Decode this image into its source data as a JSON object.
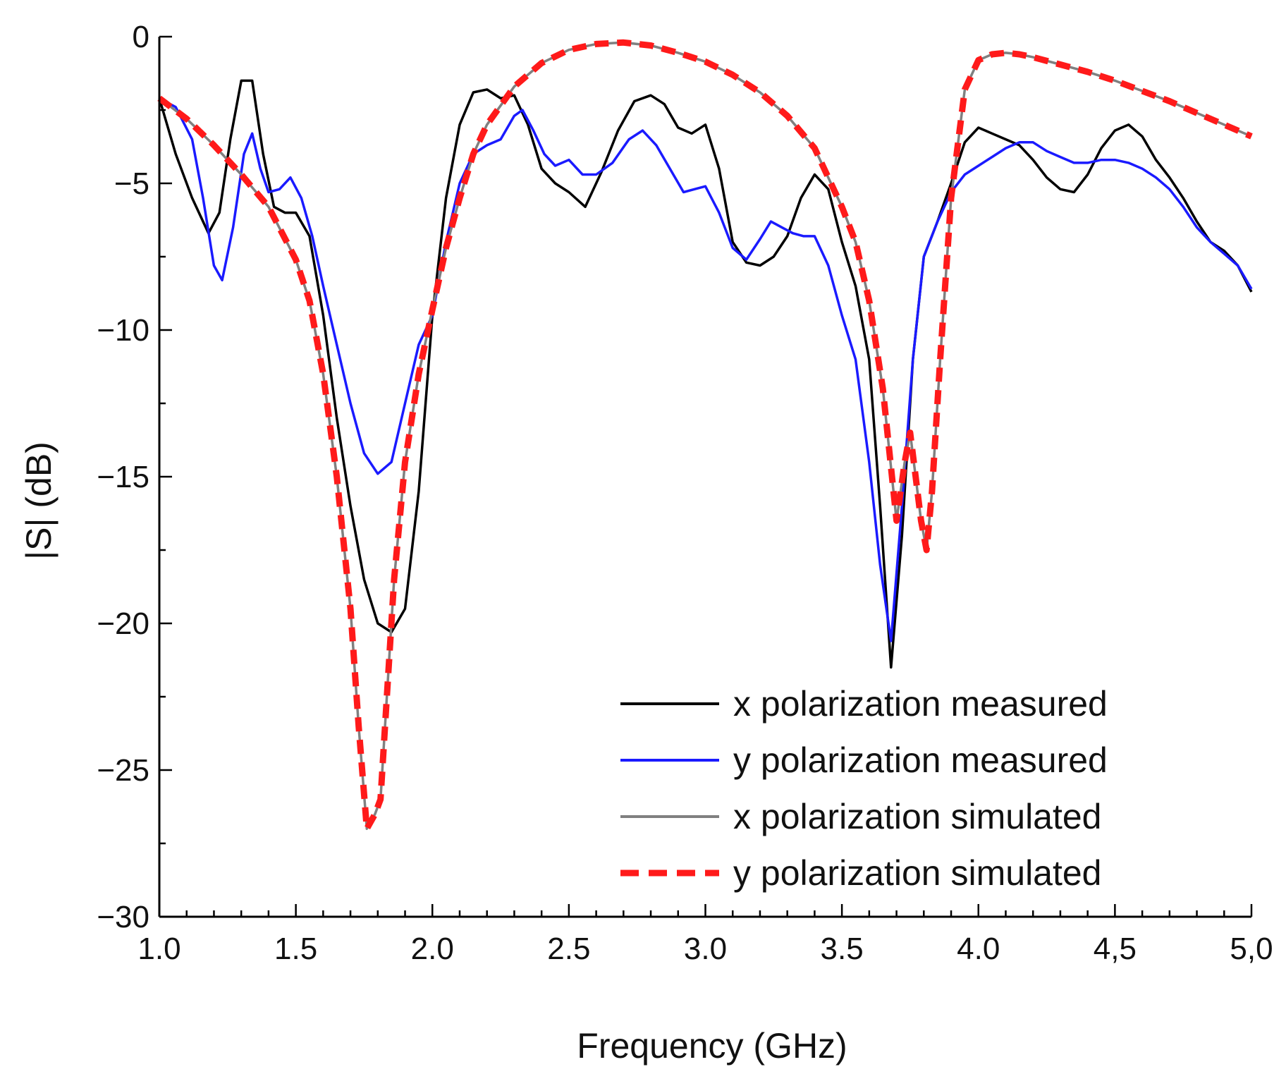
{
  "chart_data": {
    "type": "line",
    "title": "",
    "xlabel": "Frequency (GHz)",
    "ylabel": "|S| (dB)",
    "xlim": [
      1.0,
      5.0
    ],
    "ylim": [
      -30,
      0
    ],
    "x_ticks": [
      1.0,
      1.5,
      2.0,
      2.5,
      3.0,
      3.5,
      4.0,
      4.5,
      5.0
    ],
    "x_tick_labels": [
      "1.0",
      "1.5",
      "2.0",
      "2.5",
      "3.0",
      "3.5",
      "4.0",
      "4,5",
      "5,0"
    ],
    "y_ticks": [
      0,
      -5,
      -10,
      -15,
      -20,
      -25,
      -30
    ],
    "y_tick_labels": [
      "0",
      "−5",
      "−10",
      "−15",
      "−20",
      "−25",
      "−30"
    ],
    "grid": false,
    "legend_position": "bottom-right",
    "series": [
      {
        "name": "x polarization measured",
        "color": "#000000",
        "style": "solid",
        "x": [
          1.0,
          1.06,
          1.12,
          1.18,
          1.22,
          1.26,
          1.3,
          1.34,
          1.38,
          1.42,
          1.46,
          1.5,
          1.55,
          1.6,
          1.65,
          1.7,
          1.75,
          1.8,
          1.85,
          1.9,
          1.95,
          2.0,
          2.05,
          2.1,
          2.15,
          2.2,
          2.25,
          2.3,
          2.35,
          2.4,
          2.45,
          2.5,
          2.56,
          2.62,
          2.68,
          2.74,
          2.8,
          2.85,
          2.9,
          2.95,
          3.0,
          3.05,
          3.1,
          3.15,
          3.2,
          3.25,
          3.3,
          3.35,
          3.4,
          3.45,
          3.5,
          3.55,
          3.6,
          3.64,
          3.68,
          3.72,
          3.76,
          3.8,
          3.85,
          3.9,
          3.95,
          4.0,
          4.05,
          4.1,
          4.15,
          4.2,
          4.25,
          4.3,
          4.35,
          4.4,
          4.45,
          4.5,
          4.55,
          4.6,
          4.65,
          4.7,
          4.75,
          4.8,
          4.85,
          4.9,
          4.95,
          5.0
        ],
        "values": [
          -2.1,
          -4.0,
          -5.5,
          -6.7,
          -6.0,
          -3.5,
          -1.5,
          -1.5,
          -4.0,
          -5.8,
          -6.0,
          -6.0,
          -6.8,
          -9.5,
          -13.0,
          -16.0,
          -18.5,
          -20.0,
          -20.3,
          -19.5,
          -15.5,
          -9.5,
          -5.5,
          -3.0,
          -1.9,
          -1.8,
          -2.1,
          -2.0,
          -3.0,
          -4.5,
          -5.0,
          -5.3,
          -5.8,
          -4.6,
          -3.2,
          -2.2,
          -2.0,
          -2.3,
          -3.1,
          -3.3,
          -3.0,
          -4.5,
          -7.0,
          -7.7,
          -7.8,
          -7.5,
          -6.8,
          -5.5,
          -4.7,
          -5.2,
          -7.0,
          -8.5,
          -11.0,
          -16.0,
          -21.5,
          -17.0,
          -11.0,
          -7.5,
          -6.3,
          -5.0,
          -3.6,
          -3.1,
          -3.3,
          -3.5,
          -3.7,
          -4.2,
          -4.8,
          -5.2,
          -5.3,
          -4.7,
          -3.8,
          -3.2,
          -3.0,
          -3.4,
          -4.2,
          -4.8,
          -5.5,
          -6.3,
          -7.0,
          -7.3,
          -7.8,
          -8.7
        ]
      },
      {
        "name": "y polarization measured",
        "color": "#1a1aff",
        "style": "solid",
        "x": [
          1.0,
          1.06,
          1.12,
          1.16,
          1.2,
          1.23,
          1.27,
          1.31,
          1.34,
          1.37,
          1.4,
          1.44,
          1.48,
          1.52,
          1.56,
          1.6,
          1.65,
          1.7,
          1.75,
          1.8,
          1.85,
          1.9,
          1.95,
          2.0,
          2.05,
          2.1,
          2.15,
          2.2,
          2.25,
          2.3,
          2.33,
          2.37,
          2.41,
          2.45,
          2.5,
          2.55,
          2.6,
          2.66,
          2.72,
          2.77,
          2.82,
          2.87,
          2.92,
          2.96,
          3.0,
          3.05,
          3.1,
          3.15,
          3.2,
          3.24,
          3.28,
          3.32,
          3.36,
          3.4,
          3.45,
          3.5,
          3.55,
          3.6,
          3.64,
          3.68,
          3.72,
          3.76,
          3.8,
          3.85,
          3.9,
          3.95,
          4.0,
          4.05,
          4.1,
          4.15,
          4.2,
          4.25,
          4.3,
          4.35,
          4.4,
          4.45,
          4.5,
          4.55,
          4.6,
          4.65,
          4.7,
          4.75,
          4.8,
          4.85,
          4.9,
          4.95,
          5.0
        ],
        "values": [
          -2.1,
          -2.4,
          -3.5,
          -5.5,
          -7.8,
          -8.3,
          -6.5,
          -4.0,
          -3.3,
          -4.5,
          -5.3,
          -5.2,
          -4.8,
          -5.5,
          -6.8,
          -8.5,
          -10.5,
          -12.5,
          -14.2,
          -14.9,
          -14.5,
          -12.5,
          -10.5,
          -9.5,
          -7.0,
          -5.0,
          -4.0,
          -3.7,
          -3.5,
          -2.7,
          -2.5,
          -3.2,
          -4.0,
          -4.4,
          -4.2,
          -4.7,
          -4.7,
          -4.3,
          -3.5,
          -3.2,
          -3.7,
          -4.5,
          -5.3,
          -5.2,
          -5.1,
          -6.0,
          -7.2,
          -7.6,
          -6.9,
          -6.3,
          -6.5,
          -6.7,
          -6.8,
          -6.8,
          -7.8,
          -9.5,
          -11.0,
          -14.5,
          -18.0,
          -20.6,
          -16.0,
          -11.0,
          -7.5,
          -6.3,
          -5.3,
          -4.7,
          -4.4,
          -4.1,
          -3.8,
          -3.6,
          -3.6,
          -3.9,
          -4.1,
          -4.3,
          -4.3,
          -4.2,
          -4.2,
          -4.3,
          -4.5,
          -4.8,
          -5.2,
          -5.8,
          -6.5,
          -7.0,
          -7.4,
          -7.8,
          -8.6
        ]
      },
      {
        "name": "x polarization simulated",
        "color": "#808080",
        "style": "solid",
        "x": [
          1.0,
          1.1,
          1.2,
          1.3,
          1.4,
          1.5,
          1.55,
          1.6,
          1.65,
          1.7,
          1.73,
          1.76,
          1.79,
          1.81,
          1.83,
          1.86,
          1.9,
          1.95,
          2.0,
          2.05,
          2.1,
          2.15,
          2.2,
          2.3,
          2.4,
          2.5,
          2.6,
          2.7,
          2.8,
          2.9,
          3.0,
          3.1,
          3.2,
          3.3,
          3.4,
          3.5,
          3.55,
          3.6,
          3.65,
          3.7,
          3.73,
          3.75,
          3.77,
          3.79,
          3.81,
          3.83,
          3.86,
          3.9,
          3.95,
          4.0,
          4.05,
          4.1,
          4.15,
          4.2,
          4.3,
          4.4,
          4.5,
          4.6,
          4.7,
          4.8,
          4.9,
          5.0
        ],
        "values": [
          -2.1,
          -2.8,
          -3.7,
          -4.7,
          -5.8,
          -7.6,
          -9.0,
          -11.5,
          -15.0,
          -19.5,
          -23.5,
          -27.0,
          -26.5,
          -26.0,
          -23.0,
          -18.5,
          -14.5,
          -11.5,
          -9.3,
          -7.2,
          -5.5,
          -4.0,
          -3.0,
          -1.7,
          -0.9,
          -0.45,
          -0.25,
          -0.2,
          -0.3,
          -0.55,
          -0.85,
          -1.3,
          -1.9,
          -2.7,
          -3.8,
          -5.8,
          -7.0,
          -9.0,
          -12.0,
          -16.5,
          -14.5,
          -13.5,
          -15.0,
          -16.5,
          -17.5,
          -15.5,
          -11.0,
          -5.5,
          -1.8,
          -0.8,
          -0.6,
          -0.55,
          -0.6,
          -0.7,
          -0.95,
          -1.2,
          -1.5,
          -1.85,
          -2.2,
          -2.6,
          -3.0,
          -3.4
        ]
      },
      {
        "name": "y polarization simulated",
        "color": "#ff1a1a",
        "style": "dashed",
        "x": [
          1.0,
          1.1,
          1.2,
          1.3,
          1.4,
          1.5,
          1.55,
          1.6,
          1.65,
          1.7,
          1.73,
          1.76,
          1.79,
          1.81,
          1.83,
          1.86,
          1.9,
          1.95,
          2.0,
          2.05,
          2.1,
          2.15,
          2.2,
          2.3,
          2.4,
          2.5,
          2.6,
          2.7,
          2.8,
          2.9,
          3.0,
          3.1,
          3.2,
          3.3,
          3.4,
          3.5,
          3.55,
          3.6,
          3.65,
          3.7,
          3.73,
          3.75,
          3.77,
          3.79,
          3.81,
          3.83,
          3.86,
          3.9,
          3.95,
          4.0,
          4.05,
          4.1,
          4.15,
          4.2,
          4.3,
          4.4,
          4.5,
          4.6,
          4.7,
          4.8,
          4.9,
          5.0
        ],
        "values": [
          -2.1,
          -2.8,
          -3.7,
          -4.7,
          -5.8,
          -7.6,
          -9.0,
          -11.5,
          -15.0,
          -19.5,
          -23.5,
          -27.0,
          -26.5,
          -26.0,
          -23.0,
          -18.5,
          -14.5,
          -11.5,
          -9.3,
          -7.2,
          -5.5,
          -4.0,
          -3.0,
          -1.7,
          -0.9,
          -0.45,
          -0.25,
          -0.2,
          -0.3,
          -0.55,
          -0.85,
          -1.3,
          -1.9,
          -2.7,
          -3.8,
          -5.8,
          -7.0,
          -9.0,
          -12.0,
          -16.5,
          -14.5,
          -13.5,
          -15.0,
          -16.5,
          -17.5,
          -15.5,
          -11.0,
          -5.5,
          -1.8,
          -0.8,
          -0.6,
          -0.55,
          -0.6,
          -0.7,
          -0.95,
          -1.2,
          -1.5,
          -1.85,
          -2.2,
          -2.6,
          -3.0,
          -3.4
        ]
      }
    ]
  }
}
